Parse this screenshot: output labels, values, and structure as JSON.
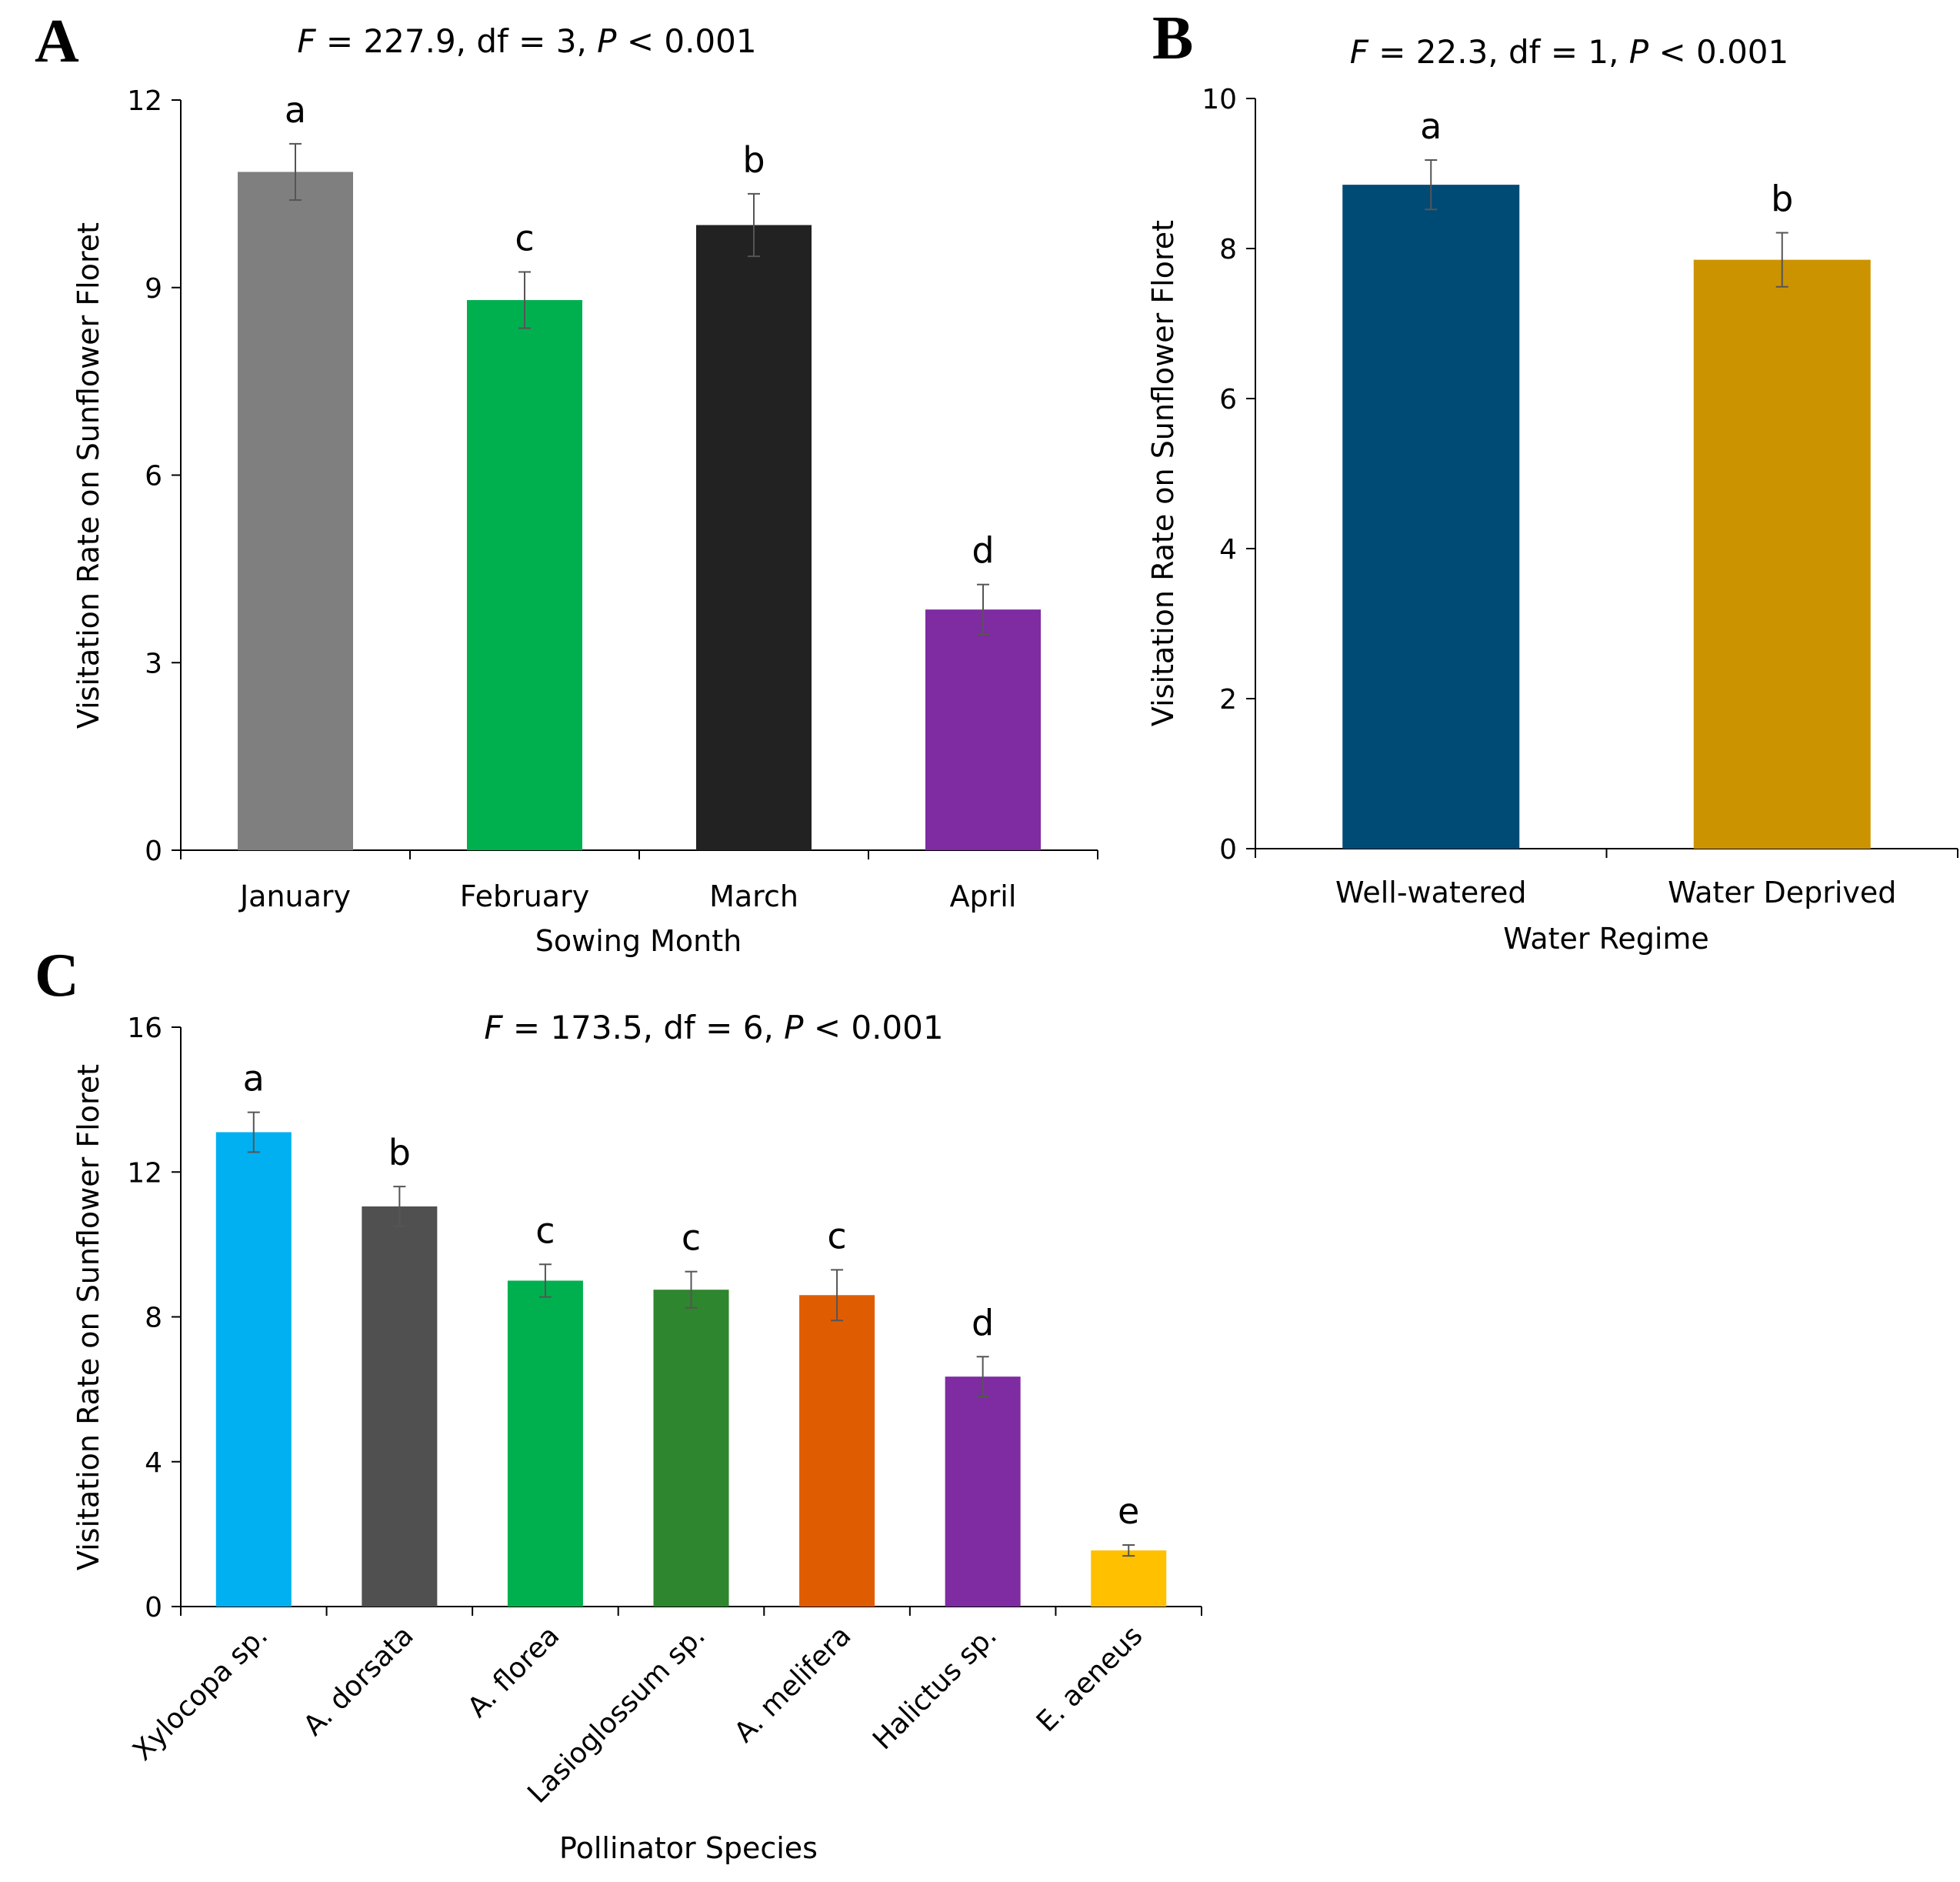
{
  "chart_data": [
    {
      "id": "A",
      "type": "bar",
      "panel_label": "A",
      "title": {
        "stat": "F",
        "rest1": " = 227.9, df = 3, ",
        "p": "P",
        "rest2": " < 0.001"
      },
      "xlabel": "Sowing Month",
      "ylabel": "Visitation Rate on Sunflower Floret",
      "ylim": [
        0,
        12
      ],
      "yticks": [
        "0",
        "3",
        "6",
        "9",
        "12"
      ],
      "categories": [
        "January",
        "February",
        "March",
        "April"
      ],
      "values": [
        10.85,
        8.8,
        10.0,
        3.85
      ],
      "errors": [
        0.45,
        0.45,
        0.5,
        0.4
      ],
      "letters": [
        "a",
        "c",
        "b",
        "d"
      ],
      "colors": [
        "#7f7f7f",
        "#00b04f",
        "#222222",
        "#7f2ba1"
      ]
    },
    {
      "id": "B",
      "type": "bar",
      "panel_label": "B",
      "title": {
        "stat": "F",
        "rest1": " = 22.3, df = 1, ",
        "p": "P",
        "rest2": " < 0.001"
      },
      "xlabel": "Water Regime",
      "ylabel": "Visitation Rate on Sunflower Floret",
      "ylim": [
        0,
        10
      ],
      "yticks": [
        "0",
        "2",
        "4",
        "6",
        "8",
        "10"
      ],
      "categories": [
        "Well-watered",
        "Water Deprived"
      ],
      "values": [
        8.85,
        7.85
      ],
      "errors": [
        0.33,
        0.36
      ],
      "letters": [
        "a",
        "b"
      ],
      "colors": [
        "#004b76",
        "#cc9300"
      ]
    },
    {
      "id": "C",
      "type": "bar",
      "panel_label": "C",
      "title": {
        "stat": "F",
        "rest1": " = 173.5, df = 6, ",
        "p": "P",
        "rest2": " < 0.001"
      },
      "xlabel": "Pollinator Species",
      "ylabel": "Visitation Rate on Sunflower Floret",
      "ylim": [
        0,
        16
      ],
      "yticks": [
        "0",
        "4",
        "8",
        "12",
        "16"
      ],
      "categories": [
        "Xylocopa sp.",
        "A. dorsata",
        "A. florea",
        "Lasioglossum sp.",
        "A. melifera",
        "Halictus sp.",
        "E. aeneus"
      ],
      "values": [
        13.1,
        11.05,
        9.0,
        8.75,
        8.6,
        6.35,
        1.55
      ],
      "errors": [
        0.55,
        0.55,
        0.45,
        0.5,
        0.7,
        0.55,
        0.15
      ],
      "letters": [
        "a",
        "b",
        "c",
        "c",
        "c",
        "d",
        "e"
      ],
      "colors": [
        "#00b0f0",
        "#505050",
        "#00b04f",
        "#2e862e",
        "#e05c00",
        "#7f2ba1",
        "#ffc000"
      ]
    }
  ]
}
